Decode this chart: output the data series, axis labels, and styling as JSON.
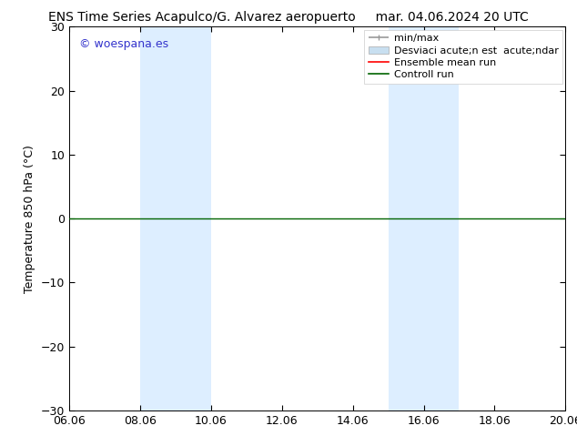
{
  "title_left": "ENS Time Series Acapulco/G. Alvarez aeropuerto",
  "title_right": "mar. 04.06.2024 20 UTC",
  "ylabel": "Temperature 850 hPa (°C)",
  "xlim_dates": [
    "06.06",
    "08.06",
    "10.06",
    "12.06",
    "14.06",
    "16.06",
    "18.06",
    "20.06"
  ],
  "ylim": [
    -30,
    30
  ],
  "yticks": [
    -30,
    -20,
    -10,
    0,
    10,
    20,
    30
  ],
  "xtick_positions": [
    0,
    2,
    4,
    6,
    8,
    10,
    12,
    14
  ],
  "xlim": [
    0,
    14
  ],
  "background_color": "#ffffff",
  "plot_bg_color": "#ffffff",
  "shaded_regions": [
    {
      "x_start": 2.0,
      "x_end": 4.0,
      "color": "#ddeeff"
    },
    {
      "x_start": 9.0,
      "x_end": 11.0,
      "color": "#ddeeff"
    }
  ],
  "watermark_text": "© woespana.es",
  "watermark_color": "#3333cc",
  "constant_line_color": "#006400",
  "constant_line_y": 0,
  "legend_labels": [
    "min/max",
    "Desviaci acute;n est  acute;ndar",
    "Ensemble mean run",
    "Controll run"
  ],
  "legend_colors": [
    "#999999",
    "#c8dff0",
    "#ff0000",
    "#006400"
  ],
  "font_size_title": 10,
  "font_size_axis": 9,
  "font_size_legend": 8,
  "font_size_ticks": 9,
  "font_size_watermark": 9
}
